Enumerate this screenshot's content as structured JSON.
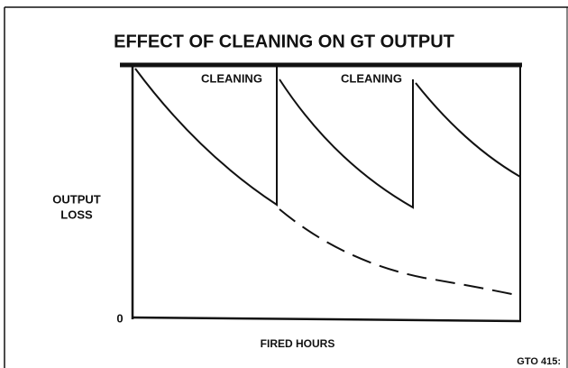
{
  "title": "EFFECT OF CLEANING ON GT OUTPUT",
  "y_label": [
    "OUTPUT",
    "LOSS"
  ],
  "x_label": "FIRED HOURS",
  "origin_label": "0",
  "annotations": [
    "CLEANING",
    "CLEANING"
  ],
  "figure_id": "GTO 415:"
}
